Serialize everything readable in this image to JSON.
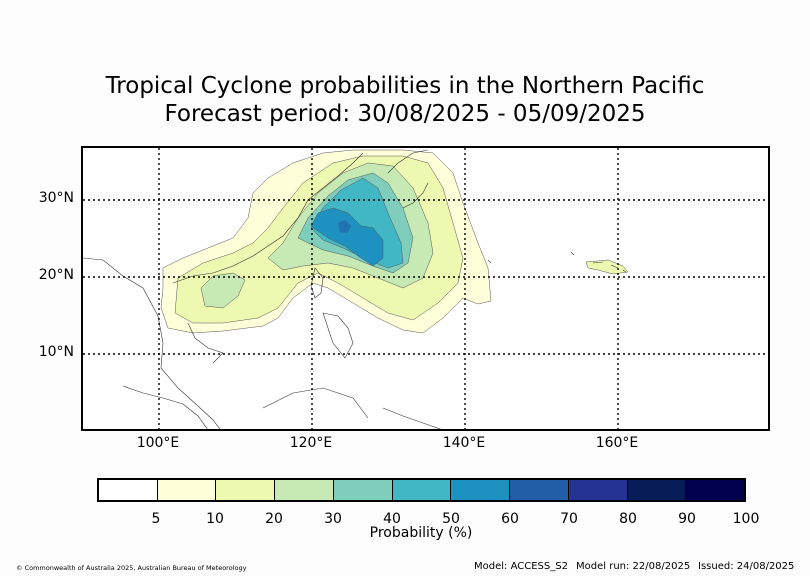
{
  "title_line1": "Tropical Cyclone probabilities in the Northern Pacific",
  "title_line2": "Forecast period: 30/08/2025 - 05/09/2025",
  "map": {
    "lon_range": [
      90,
      180
    ],
    "lat_range": [
      0,
      37
    ],
    "lat_labels": [
      "30°N",
      "20°N",
      "10°N"
    ],
    "lon_labels": [
      "100°E",
      "120°E",
      "140°E",
      "160°E"
    ],
    "grid": "dotted"
  },
  "colorbar": {
    "label": "Probability (%)",
    "ticks": [
      "5",
      "10",
      "20",
      "30",
      "40",
      "50",
      "60",
      "70",
      "80",
      "90",
      "100"
    ],
    "colors": [
      "#ffffff",
      "#ffffd9",
      "#edf8b1",
      "#c7e9b4",
      "#7fcdbb",
      "#41b6c4",
      "#1d91c0",
      "#225ea8",
      "#253494",
      "#081d58",
      "#00004f"
    ]
  },
  "footer": {
    "copyright": "© Commonwealth of Australia 2025, Australian Bureau of Meteorology",
    "model": "Model: ACCESS_S2",
    "model_run": "Model run: 22/08/2025",
    "issued": "Issued: 24/08/2025"
  }
}
